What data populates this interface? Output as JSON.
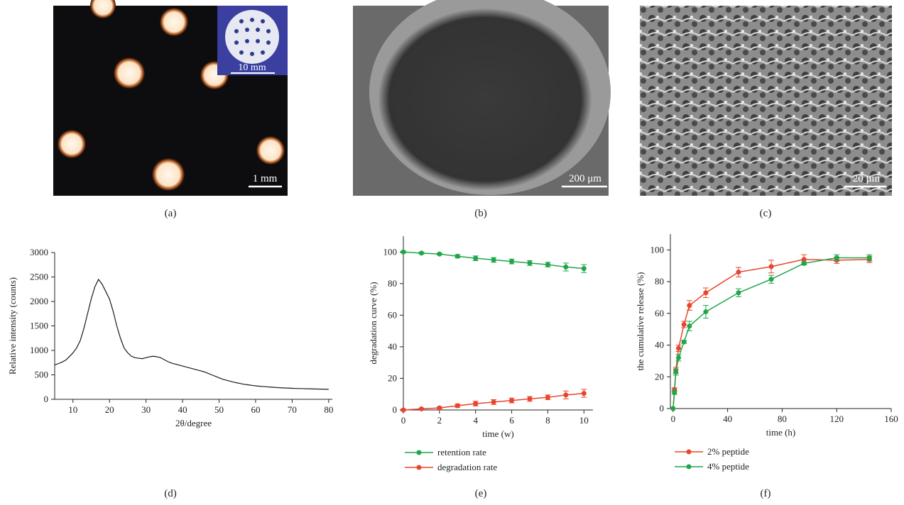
{
  "panels": {
    "labels": [
      "(a)",
      "(b)",
      "(c)",
      "(d)",
      "(e)",
      "(f)"
    ],
    "scale_bars": {
      "a_inset": "10 mm",
      "a": "1 mm",
      "b": "200 μm",
      "c": "20 μm"
    }
  },
  "chart_data": [
    {
      "type": "line",
      "xlabel": "2θ/degree",
      "ylabel": "Relative intensity (counts)",
      "xlim": [
        5,
        81
      ],
      "ylim": [
        0,
        3000
      ],
      "xticks": [
        10,
        20,
        30,
        40,
        50,
        60,
        70,
        80
      ],
      "yticks": [
        0,
        500,
        1000,
        1500,
        2000,
        2500,
        3000
      ],
      "x": [
        5,
        6,
        7,
        8,
        9,
        10,
        11,
        12,
        13,
        14,
        15,
        16,
        17,
        18,
        19,
        20,
        21,
        22,
        23,
        24,
        25,
        26,
        27,
        28,
        29,
        30,
        31,
        32,
        33,
        34,
        35,
        36,
        37,
        38,
        39,
        40,
        41,
        42,
        43,
        44,
        45,
        46,
        47,
        48,
        49,
        50,
        51,
        52,
        53,
        54,
        55,
        56,
        57,
        58,
        59,
        60,
        61,
        62,
        63,
        64,
        65,
        66,
        67,
        68,
        69,
        70,
        71,
        72,
        73,
        74,
        75,
        76,
        77,
        78,
        79,
        80
      ],
      "series": [
        {
          "color": "#1a1a1a",
          "values": [
            700,
            730,
            760,
            800,
            870,
            950,
            1050,
            1200,
            1450,
            1750,
            2050,
            2300,
            2450,
            2350,
            2200,
            2050,
            1800,
            1500,
            1250,
            1050,
            950,
            880,
            850,
            840,
            830,
            850,
            870,
            880,
            870,
            850,
            810,
            770,
            740,
            720,
            700,
            680,
            660,
            640,
            620,
            600,
            580,
            560,
            530,
            500,
            470,
            440,
            410,
            390,
            370,
            350,
            335,
            320,
            305,
            295,
            285,
            275,
            268,
            262,
            256,
            250,
            245,
            240,
            236,
            232,
            228,
            225,
            222,
            220,
            218,
            216,
            214,
            212,
            210,
            208,
            206,
            205
          ]
        }
      ]
    },
    {
      "type": "line",
      "markers": true,
      "xlabel": "time (w)",
      "ylabel": "degradation curve (%)",
      "xlim": [
        0,
        10.5
      ],
      "ylim": [
        0,
        110
      ],
      "xticks": [
        0,
        2,
        4,
        6,
        8,
        10
      ],
      "yticks": [
        0,
        20,
        40,
        60,
        80,
        100
      ],
      "x": [
        0,
        1,
        2,
        3,
        4,
        5,
        6,
        7,
        8,
        9,
        10
      ],
      "series": [
        {
          "name": "retention rate",
          "color": "#1fa64a",
          "values": [
            100,
            99.3,
            98.7,
            97.3,
            96,
            95,
            94,
            93,
            92,
            90.5,
            89.5
          ],
          "errors": [
            0.5,
            0.5,
            0.5,
            1,
            1.5,
            1.5,
            1.5,
            1.5,
            1.5,
            2.5,
            2.5
          ]
        },
        {
          "name": "degradation rate",
          "color": "#e8452c",
          "values": [
            0,
            0.7,
            1.3,
            2.7,
            4,
            5,
            6,
            7,
            8,
            9.5,
            10.5
          ],
          "errors": [
            0.5,
            0.5,
            0.5,
            1,
            1.5,
            1.5,
            1.5,
            1.5,
            1.5,
            2.5,
            2.5
          ]
        }
      ]
    },
    {
      "type": "line",
      "markers": true,
      "xlabel": "time (h)",
      "ylabel": "the cumulative release (%)",
      "xlim": [
        -2,
        160
      ],
      "ylim": [
        0,
        110
      ],
      "xticks": [
        0,
        40,
        80,
        120,
        160
      ],
      "yticks": [
        0,
        20,
        40,
        60,
        80,
        100
      ],
      "x": [
        0,
        1,
        2,
        4,
        8,
        12,
        24,
        48,
        72,
        96,
        120,
        144
      ],
      "series": [
        {
          "name": "2% peptide",
          "color": "#e8452c",
          "values": [
            0,
            12,
            24,
            38,
            53,
            65,
            73,
            86,
            89.5,
            94,
            93.5,
            94
          ],
          "errors": [
            0,
            1,
            2,
            2,
            2,
            3,
            3,
            3,
            4,
            3,
            2,
            2
          ]
        },
        {
          "name": "4% peptide",
          "color": "#1fa64a",
          "values": [
            0,
            10,
            23,
            32,
            42,
            52,
            61,
            73,
            81.5,
            91.5,
            95,
            95
          ],
          "errors": [
            0,
            1,
            2,
            2,
            1,
            3,
            4,
            2.5,
            2.5,
            1,
            2,
            2
          ]
        }
      ]
    }
  ]
}
